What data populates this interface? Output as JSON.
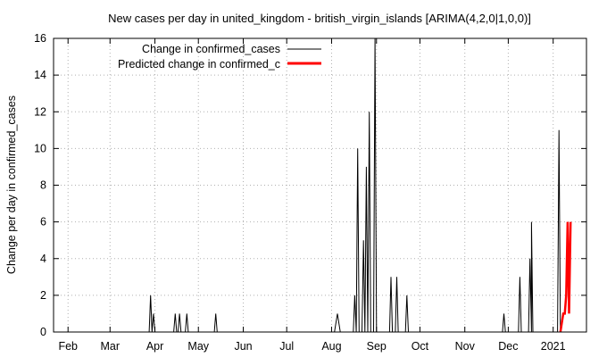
{
  "chart_data": {
    "type": "line",
    "title": "New cases per day in united_kingdom - british_virgin_islands [ARIMA(4,2,0|1,0,0)]",
    "xlabel": "",
    "ylabel": "Change per day in confirmed_cases",
    "ylim": [
      0,
      16
    ],
    "yticks": [
      0,
      2,
      4,
      6,
      8,
      10,
      12,
      14,
      16
    ],
    "xlim": [
      "2020-01-22",
      "2021-01-24"
    ],
    "xticks": [
      {
        "label": "Feb",
        "date": "2020-02-01"
      },
      {
        "label": "Mar",
        "date": "2020-03-01"
      },
      {
        "label": "Apr",
        "date": "2020-04-01"
      },
      {
        "label": "May",
        "date": "2020-05-01"
      },
      {
        "label": "Jun",
        "date": "2020-06-01"
      },
      {
        "label": "Jul",
        "date": "2020-07-01"
      },
      {
        "label": "Aug",
        "date": "2020-08-01"
      },
      {
        "label": "Sep",
        "date": "2020-09-01"
      },
      {
        "label": "Oct",
        "date": "2020-10-01"
      },
      {
        "label": "Nov",
        "date": "2020-11-01"
      },
      {
        "label": "Dec",
        "date": "2020-12-01"
      },
      {
        "label": "2021",
        "date": "2021-01-01"
      }
    ],
    "grid": true,
    "legend_position": "top-left",
    "series": [
      {
        "name": "Change in confirmed_cases",
        "color": "#000000",
        "points": [
          [
            "2020-01-22",
            0
          ],
          [
            "2020-03-28",
            0
          ],
          [
            "2020-03-29",
            2
          ],
          [
            "2020-03-30",
            0
          ],
          [
            "2020-03-31",
            1
          ],
          [
            "2020-04-01",
            0
          ],
          [
            "2020-04-14",
            0
          ],
          [
            "2020-04-15",
            1
          ],
          [
            "2020-04-16",
            0
          ],
          [
            "2020-04-17",
            0
          ],
          [
            "2020-04-18",
            1
          ],
          [
            "2020-04-19",
            0
          ],
          [
            "2020-04-22",
            0
          ],
          [
            "2020-04-23",
            1
          ],
          [
            "2020-04-24",
            0
          ],
          [
            "2020-05-12",
            0
          ],
          [
            "2020-05-13",
            1
          ],
          [
            "2020-05-14",
            0
          ],
          [
            "2020-08-03",
            0
          ],
          [
            "2020-08-05",
            1
          ],
          [
            "2020-08-07",
            0
          ],
          [
            "2020-08-16",
            0
          ],
          [
            "2020-08-17",
            2
          ],
          [
            "2020-08-18",
            0
          ],
          [
            "2020-08-19",
            10
          ],
          [
            "2020-08-20",
            0
          ],
          [
            "2020-08-22",
            0
          ],
          [
            "2020-08-23",
            5
          ],
          [
            "2020-08-24",
            0
          ],
          [
            "2020-08-25",
            9
          ],
          [
            "2020-08-26",
            0
          ],
          [
            "2020-08-27",
            12
          ],
          [
            "2020-08-28",
            0
          ],
          [
            "2020-08-30",
            0
          ],
          [
            "2020-08-31",
            16
          ],
          [
            "2020-09-01",
            0
          ],
          [
            "2020-09-10",
            0
          ],
          [
            "2020-09-11",
            3
          ],
          [
            "2020-09-12",
            0
          ],
          [
            "2020-09-14",
            0
          ],
          [
            "2020-09-15",
            3
          ],
          [
            "2020-09-16",
            0
          ],
          [
            "2020-09-21",
            0
          ],
          [
            "2020-09-22",
            2
          ],
          [
            "2020-09-23",
            0
          ],
          [
            "2020-11-27",
            0
          ],
          [
            "2020-11-28",
            1
          ],
          [
            "2020-11-29",
            0
          ],
          [
            "2020-12-08",
            0
          ],
          [
            "2020-12-09",
            3
          ],
          [
            "2020-12-10",
            0
          ],
          [
            "2020-12-15",
            0
          ],
          [
            "2020-12-16",
            4
          ],
          [
            "2020-12-17",
            0
          ],
          [
            "2020-12-17",
            6
          ],
          [
            "2020-12-18",
            0
          ],
          [
            "2021-01-04",
            0
          ],
          [
            "2021-01-05",
            11
          ],
          [
            "2021-01-06",
            0
          ]
        ]
      },
      {
        "name": "Predicted change in confirmed_c",
        "color": "#ff0000",
        "points": [
          [
            "2021-01-06",
            0
          ],
          [
            "2021-01-08",
            1
          ],
          [
            "2021-01-09",
            1
          ],
          [
            "2021-01-10",
            2
          ],
          [
            "2021-01-11",
            6
          ],
          [
            "2021-01-12",
            1
          ],
          [
            "2021-01-13",
            6
          ]
        ]
      }
    ]
  }
}
